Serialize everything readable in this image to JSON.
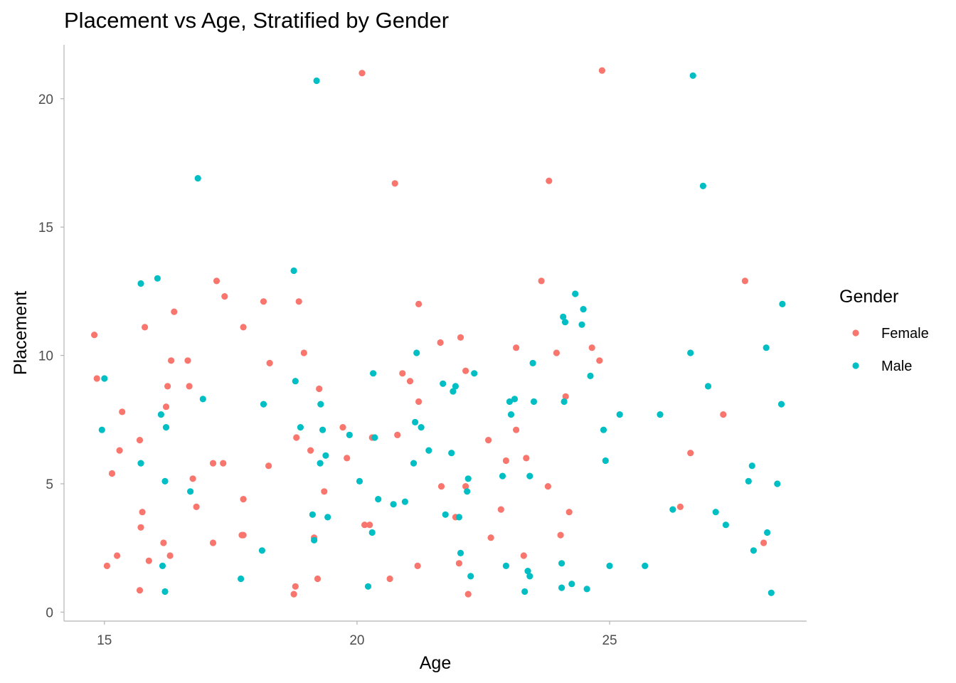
{
  "chart_data": {
    "type": "scatter",
    "title": "Placement vs Age, Stratified by Gender",
    "xlabel": "Age",
    "ylabel": "Placement",
    "xlim": [
      14.2,
      28.9
    ],
    "ylim": [
      -0.35,
      22.1
    ],
    "xticks": [
      15,
      20,
      25
    ],
    "yticks": [
      0,
      5,
      10,
      15,
      20
    ],
    "grid": false,
    "legend": {
      "title": "Gender",
      "position": "right"
    },
    "series": [
      {
        "name": "Female",
        "color": "#F8766D",
        "points": [
          [
            14.8,
            10.8
          ],
          [
            14.85,
            9.1
          ],
          [
            15.05,
            1.8
          ],
          [
            15.15,
            5.4
          ],
          [
            15.25,
            2.2
          ],
          [
            15.3,
            6.3
          ],
          [
            15.35,
            7.8
          ],
          [
            15.7,
            0.85
          ],
          [
            15.7,
            6.7
          ],
          [
            15.72,
            3.3
          ],
          [
            15.75,
            3.9
          ],
          [
            15.8,
            11.1
          ],
          [
            15.88,
            2.0
          ],
          [
            16.17,
            2.7
          ],
          [
            16.22,
            8.0
          ],
          [
            16.25,
            8.8
          ],
          [
            16.3,
            2.2
          ],
          [
            16.32,
            9.8
          ],
          [
            16.38,
            11.7
          ],
          [
            16.65,
            9.8
          ],
          [
            16.68,
            8.8
          ],
          [
            16.75,
            5.2
          ],
          [
            16.82,
            4.1
          ],
          [
            17.15,
            2.7
          ],
          [
            17.15,
            5.8
          ],
          [
            17.22,
            12.9
          ],
          [
            17.35,
            5.8
          ],
          [
            17.38,
            12.3
          ],
          [
            17.72,
            3.0
          ],
          [
            17.75,
            3.0
          ],
          [
            17.75,
            4.4
          ],
          [
            17.75,
            11.1
          ],
          [
            18.15,
            12.1
          ],
          [
            18.25,
            5.7
          ],
          [
            18.27,
            9.7
          ],
          [
            18.75,
            0.7
          ],
          [
            18.78,
            1.0
          ],
          [
            18.8,
            6.8
          ],
          [
            18.85,
            12.1
          ],
          [
            18.95,
            10.1
          ],
          [
            19.08,
            6.3
          ],
          [
            19.15,
            2.9
          ],
          [
            19.22,
            1.3
          ],
          [
            19.25,
            8.7
          ],
          [
            19.35,
            4.7
          ],
          [
            19.72,
            7.2
          ],
          [
            19.8,
            6.0
          ],
          [
            20.1,
            21.0
          ],
          [
            20.15,
            3.4
          ],
          [
            20.25,
            3.4
          ],
          [
            20.3,
            6.8
          ],
          [
            20.65,
            1.3
          ],
          [
            20.75,
            16.7
          ],
          [
            20.8,
            6.9
          ],
          [
            20.9,
            9.3
          ],
          [
            21.05,
            9.0
          ],
          [
            21.2,
            1.8
          ],
          [
            21.22,
            8.2
          ],
          [
            21.22,
            12.0
          ],
          [
            21.65,
            10.5
          ],
          [
            21.67,
            4.9
          ],
          [
            21.95,
            3.7
          ],
          [
            22.02,
            1.9
          ],
          [
            22.05,
            10.7
          ],
          [
            22.15,
            9.4
          ],
          [
            22.15,
            4.9
          ],
          [
            22.2,
            0.7
          ],
          [
            22.6,
            6.7
          ],
          [
            22.65,
            2.9
          ],
          [
            22.85,
            4.0
          ],
          [
            22.95,
            5.9
          ],
          [
            23.15,
            7.1
          ],
          [
            23.15,
            10.3
          ],
          [
            23.3,
            2.2
          ],
          [
            23.35,
            6.0
          ],
          [
            23.65,
            12.9
          ],
          [
            23.78,
            4.9
          ],
          [
            23.8,
            16.8
          ],
          [
            23.95,
            10.1
          ],
          [
            24.03,
            3.0
          ],
          [
            24.13,
            8.4
          ],
          [
            24.2,
            3.9
          ],
          [
            24.65,
            10.3
          ],
          [
            24.8,
            9.8
          ],
          [
            24.85,
            21.1
          ],
          [
            26.4,
            4.1
          ],
          [
            26.6,
            6.2
          ],
          [
            27.25,
            7.7
          ],
          [
            27.68,
            12.9
          ],
          [
            28.05,
            2.7
          ]
        ]
      },
      {
        "name": "Male",
        "color": "#00BFC4",
        "points": [
          [
            14.95,
            7.1
          ],
          [
            15.0,
            9.1
          ],
          [
            15.72,
            12.8
          ],
          [
            15.72,
            5.8
          ],
          [
            16.05,
            13.0
          ],
          [
            16.12,
            7.7
          ],
          [
            16.15,
            1.8
          ],
          [
            16.2,
            0.8
          ],
          [
            16.2,
            5.1
          ],
          [
            16.22,
            7.2
          ],
          [
            16.7,
            4.7
          ],
          [
            16.85,
            16.9
          ],
          [
            16.95,
            8.3
          ],
          [
            17.7,
            1.3
          ],
          [
            18.12,
            2.4
          ],
          [
            18.15,
            8.1
          ],
          [
            18.75,
            13.3
          ],
          [
            18.78,
            9.0
          ],
          [
            18.88,
            7.2
          ],
          [
            19.12,
            3.8
          ],
          [
            19.15,
            2.8
          ],
          [
            19.2,
            20.7
          ],
          [
            19.27,
            5.8
          ],
          [
            19.28,
            8.1
          ],
          [
            19.32,
            7.1
          ],
          [
            19.38,
            6.1
          ],
          [
            19.42,
            3.7
          ],
          [
            19.85,
            6.9
          ],
          [
            20.05,
            5.1
          ],
          [
            20.22,
            1.0
          ],
          [
            20.3,
            3.1
          ],
          [
            20.32,
            9.3
          ],
          [
            20.35,
            6.8
          ],
          [
            20.42,
            4.4
          ],
          [
            20.72,
            4.2
          ],
          [
            20.95,
            4.3
          ],
          [
            21.12,
            5.8
          ],
          [
            21.15,
            7.4
          ],
          [
            21.18,
            10.1
          ],
          [
            21.27,
            7.2
          ],
          [
            21.42,
            6.3
          ],
          [
            21.7,
            8.9
          ],
          [
            21.75,
            3.8
          ],
          [
            21.87,
            6.2
          ],
          [
            21.9,
            8.6
          ],
          [
            21.95,
            8.8
          ],
          [
            22.02,
            3.7
          ],
          [
            22.05,
            2.3
          ],
          [
            22.18,
            4.7
          ],
          [
            22.2,
            5.2
          ],
          [
            22.25,
            1.4
          ],
          [
            22.32,
            9.3
          ],
          [
            22.88,
            5.3
          ],
          [
            22.95,
            1.8
          ],
          [
            23.02,
            8.2
          ],
          [
            23.05,
            7.7
          ],
          [
            23.12,
            8.3
          ],
          [
            23.32,
            0.8
          ],
          [
            23.38,
            1.6
          ],
          [
            23.42,
            1.4
          ],
          [
            23.42,
            5.3
          ],
          [
            23.48,
            9.7
          ],
          [
            23.5,
            8.2
          ],
          [
            24.05,
            0.95
          ],
          [
            24.05,
            1.9
          ],
          [
            24.08,
            11.5
          ],
          [
            24.1,
            8.2
          ],
          [
            24.12,
            11.3
          ],
          [
            24.25,
            1.1
          ],
          [
            24.32,
            12.4
          ],
          [
            24.45,
            11.2
          ],
          [
            24.48,
            11.8
          ],
          [
            24.55,
            0.9
          ],
          [
            24.62,
            9.2
          ],
          [
            24.88,
            7.1
          ],
          [
            24.92,
            5.9
          ],
          [
            25.0,
            1.8
          ],
          [
            25.2,
            7.7
          ],
          [
            25.7,
            1.8
          ],
          [
            26.0,
            7.7
          ],
          [
            26.25,
            4.0
          ],
          [
            26.6,
            10.1
          ],
          [
            26.65,
            20.9
          ],
          [
            26.85,
            16.6
          ],
          [
            26.95,
            8.8
          ],
          [
            27.1,
            3.9
          ],
          [
            27.3,
            3.4
          ],
          [
            27.75,
            5.1
          ],
          [
            27.82,
            5.7
          ],
          [
            27.85,
            2.4
          ],
          [
            28.1,
            10.3
          ],
          [
            28.12,
            3.1
          ],
          [
            28.2,
            0.75
          ],
          [
            28.32,
            5.0
          ],
          [
            28.4,
            8.1
          ],
          [
            28.42,
            12.0
          ]
        ]
      }
    ]
  }
}
